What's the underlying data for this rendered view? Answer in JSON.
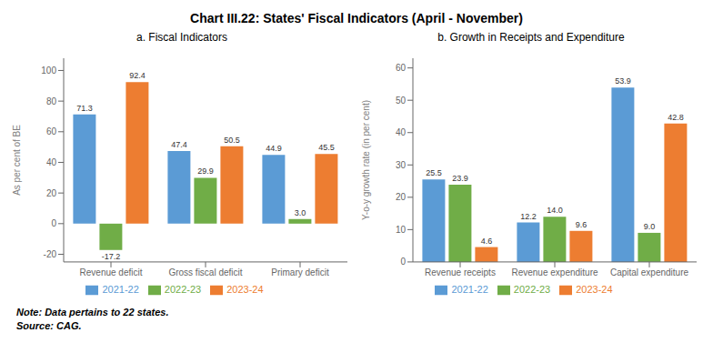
{
  "title": "Chart III.22: States' Fiscal Indicators (April - November)",
  "annotations": [
    "Note: Data pertains to 22 states.",
    "Source: CAG."
  ],
  "chart_data": [
    {
      "type": "bar",
      "title": "a. Fiscal Indicators",
      "ylabel": "As per cent of BE",
      "categories": [
        "Revenue deficit",
        "Gross fiscal deficit",
        "Primary deficit"
      ],
      "series": [
        {
          "name": "2021-22",
          "color": "#5b9bd5",
          "values": [
            71.3,
            47.4,
            44.9
          ]
        },
        {
          "name": "2022-23",
          "color": "#70ad47",
          "values": [
            -17.2,
            29.9,
            3.0
          ],
          "value_labels": [
            "-17.2",
            "29.9",
            "3.0"
          ]
        },
        {
          "name": "2023-24",
          "color": "#ed7d31",
          "values": [
            92.4,
            50.5,
            45.5
          ]
        }
      ],
      "ylim": [
        -25,
        108
      ],
      "yticks": [
        -20,
        0,
        20,
        40,
        60,
        80,
        100
      ],
      "grid": false,
      "legend": "bottom",
      "data_labels": true
    },
    {
      "type": "bar",
      "title": "b. Growth in Receipts and Expenditure",
      "ylabel": "Y-o-y growth rate (in per cent)",
      "categories": [
        "Revenue receipts",
        "Revenue expenditure",
        "Capital expenditure"
      ],
      "series": [
        {
          "name": "2021-22",
          "color": "#5b9bd5",
          "values": [
            25.5,
            12.2,
            53.9
          ]
        },
        {
          "name": "2022-23",
          "color": "#70ad47",
          "values": [
            23.9,
            14.0,
            9.0
          ],
          "value_labels": [
            "23.9",
            "14.0",
            "9.0"
          ]
        },
        {
          "name": "2023-24",
          "color": "#ed7d31",
          "values": [
            4.6,
            9.6,
            42.8
          ]
        }
      ],
      "ylim": [
        0,
        63
      ],
      "yticks": [
        0,
        10,
        20,
        30,
        40,
        50,
        60
      ],
      "grid": false,
      "legend": "bottom",
      "data_labels": true
    }
  ]
}
